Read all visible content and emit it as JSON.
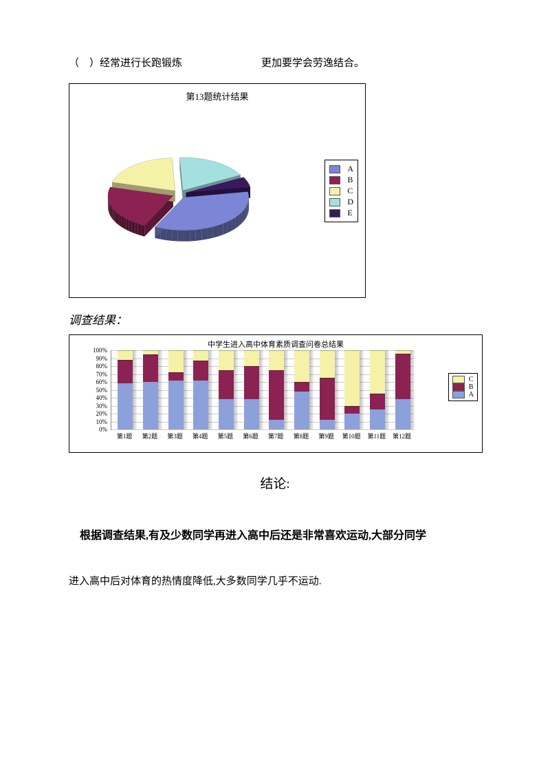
{
  "top": {
    "left": "（　）经常进行长跑锻炼",
    "right": "更加要学会劳逸结合。"
  },
  "pie_chart": {
    "title": "第13题统计结果",
    "slices": [
      {
        "label": "A",
        "value": 35,
        "color": "#7b86d6"
      },
      {
        "label": "B",
        "value": 22,
        "color": "#8b2252"
      },
      {
        "label": "C",
        "value": 20,
        "color": "#f5f2a8"
      },
      {
        "label": "D",
        "value": 18,
        "color": "#a5e0e0"
      },
      {
        "label": "E",
        "value": 5,
        "color": "#3a1a5e"
      }
    ],
    "legend_items": [
      {
        "label": "A",
        "color": "#7b86d6"
      },
      {
        "label": "B",
        "color": "#8b2252"
      },
      {
        "label": "C",
        "color": "#f5f2a8"
      },
      {
        "label": "D",
        "color": "#a5e0e0"
      },
      {
        "label": "E",
        "color": "#3a1a5e"
      }
    ]
  },
  "survey_label": "调查结果：",
  "bar_chart": {
    "title": "中学生进入高中体育素质调查问卷总结果",
    "y_axis": {
      "min": 0,
      "max": 100,
      "step": 10,
      "ticks": [
        "0%",
        "10%",
        "20%",
        "30%",
        "40%",
        "50%",
        "60%",
        "70%",
        "80%",
        "90%",
        "100%"
      ]
    },
    "colors": {
      "A": "#8ca0dc",
      "B": "#8b2252",
      "C": "#f5f2a8"
    },
    "categories": [
      "第1题",
      "第2题",
      "第3题",
      "第4题",
      "第5题",
      "第6题",
      "第7题",
      "第8题",
      "第9题",
      "第10题",
      "第11题",
      "第12题"
    ],
    "series": [
      {
        "A": 58,
        "B": 30,
        "C": 12
      },
      {
        "A": 60,
        "B": 35,
        "C": 5
      },
      {
        "A": 62,
        "B": 10,
        "C": 28
      },
      {
        "A": 62,
        "B": 25,
        "C": 13
      },
      {
        "A": 38,
        "B": 37,
        "C": 25
      },
      {
        "A": 38,
        "B": 42,
        "C": 20
      },
      {
        "A": 12,
        "B": 63,
        "C": 25
      },
      {
        "A": 48,
        "B": 12,
        "C": 40
      },
      {
        "A": 12,
        "B": 53,
        "C": 35
      },
      {
        "A": 20,
        "B": 10,
        "C": 70
      },
      {
        "A": 25,
        "B": 20,
        "C": 55
      },
      {
        "A": 38,
        "B": 58,
        "C": 4
      }
    ],
    "legend_items": [
      {
        "label": "C",
        "color": "#f5f2a8"
      },
      {
        "label": "B",
        "color": "#8b2252"
      },
      {
        "label": "A",
        "color": "#8ca0dc"
      }
    ]
  },
  "conclusion": {
    "heading": "结论:",
    "line1": "根据调查结果,有及少数同学再进入高中后还是非常喜欢运动,大部分同学",
    "line2": "进入高中后对体育的热情度降低,大多数同学几乎不运动."
  }
}
